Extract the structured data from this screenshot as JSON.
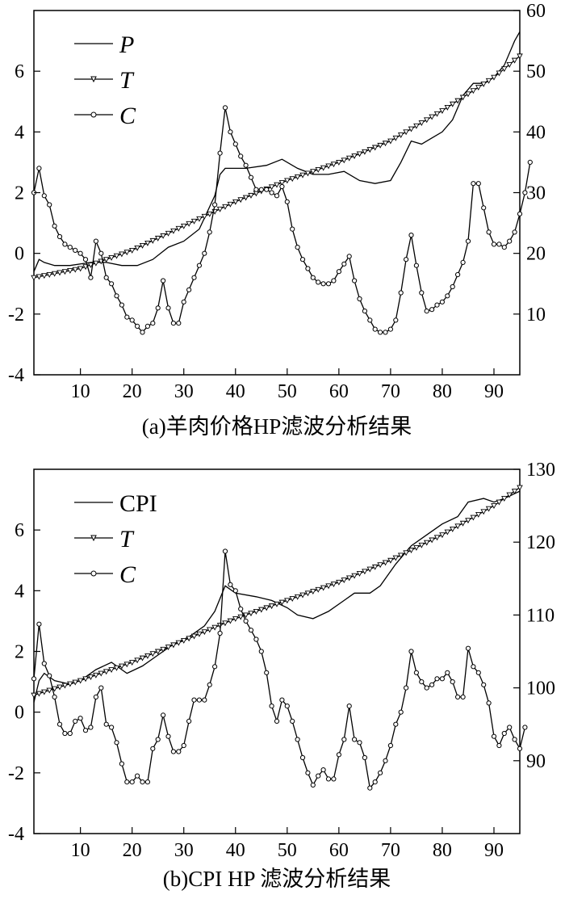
{
  "chart_data": [
    {
      "id": "a",
      "type": "line",
      "caption": "(a)羊肉价格HP滤波分析结果",
      "xlim": [
        1,
        95
      ],
      "x_ticks": [
        "10",
        "20",
        "30",
        "40",
        "50",
        "60",
        "70",
        "80",
        "90"
      ],
      "ylim_left": [
        -4,
        8
      ],
      "y_ticks_left": [
        "-4",
        "-2",
        "0",
        "2",
        "4",
        "6"
      ],
      "ylim_right": [
        0,
        60
      ],
      "y_ticks_right": [
        "10",
        "20",
        "30",
        "40",
        "50",
        "60"
      ],
      "grid": false,
      "legend_position": "top-left",
      "legend": [
        "P",
        "T",
        "C"
      ],
      "series": [
        {
          "name": "P",
          "axis": "right",
          "marker": "none",
          "points": [
            [
              1,
              17
            ],
            [
              2,
              19
            ],
            [
              3,
              18.5
            ],
            [
              5,
              18
            ],
            [
              8,
              18
            ],
            [
              12,
              18.5
            ],
            [
              15,
              18.5
            ],
            [
              18,
              18
            ],
            [
              21,
              18
            ],
            [
              24,
              19
            ],
            [
              27,
              21
            ],
            [
              30,
              22
            ],
            [
              33,
              24
            ],
            [
              36,
              29.5
            ],
            [
              37,
              33
            ],
            [
              38,
              34
            ],
            [
              42,
              34
            ],
            [
              46,
              34.5
            ],
            [
              49,
              35.5
            ],
            [
              52,
              34
            ],
            [
              55,
              33
            ],
            [
              58,
              33
            ],
            [
              61,
              33.5
            ],
            [
              64,
              32
            ],
            [
              67,
              31.5
            ],
            [
              70,
              32
            ],
            [
              72,
              35
            ],
            [
              74,
              38.5
            ],
            [
              76,
              38
            ],
            [
              78,
              39
            ],
            [
              80,
              40
            ],
            [
              82,
              42
            ],
            [
              84,
              46
            ],
            [
              86,
              48
            ],
            [
              88,
              48
            ],
            [
              90,
              49
            ],
            [
              92,
              51
            ],
            [
              94,
              55
            ],
            [
              95,
              56.5
            ]
          ]
        },
        {
          "name": "T",
          "axis": "right",
          "marker": "triangle-down",
          "range": [
            1,
            95
          ],
          "points": [
            [
              1,
              16
            ],
            [
              10,
              17.5
            ],
            [
              20,
              20.5
            ],
            [
              30,
              24.5
            ],
            [
              40,
              28.5
            ],
            [
              50,
              32
            ],
            [
              60,
              35
            ],
            [
              70,
              38.5
            ],
            [
              80,
              43.5
            ],
            [
              90,
              49
            ],
            [
              95,
              52.5
            ]
          ]
        },
        {
          "name": "C",
          "axis": "left",
          "marker": "circle",
          "values": [
            2.0,
            2.8,
            1.9,
            1.6,
            0.9,
            0.55,
            0.3,
            0.2,
            0.1,
            0.0,
            -0.2,
            -0.8,
            0.4,
            0.0,
            -0.8,
            -1.0,
            -1.4,
            -1.7,
            -2.1,
            -2.2,
            -2.4,
            -2.6,
            -2.4,
            -2.3,
            -1.8,
            -0.9,
            -1.8,
            -2.3,
            -2.3,
            -1.6,
            -1.2,
            -0.8,
            -0.4,
            0.0,
            0.7,
            1.6,
            3.3,
            4.8,
            4.0,
            3.6,
            3.2,
            2.9,
            2.5,
            2.1,
            2.1,
            2.1,
            2.0,
            1.9,
            2.2,
            1.7,
            0.8,
            0.2,
            -0.2,
            -0.5,
            -0.8,
            -0.95,
            -1.0,
            -1.0,
            -0.9,
            -0.6,
            -0.35,
            -0.1,
            -0.9,
            -1.5,
            -1.9,
            -2.2,
            -2.5,
            -2.6,
            -2.6,
            -2.5,
            -2.2,
            -1.3,
            -0.2,
            0.6,
            -0.4,
            -1.3,
            -1.9,
            -1.85,
            -1.7,
            -1.6,
            -1.4,
            -1.1,
            -0.7,
            -0.3,
            0.4,
            2.3,
            2.3,
            1.5,
            0.7,
            0.3,
            0.3,
            0.2,
            0.4,
            0.7,
            1.3,
            2.0,
            3.0
          ]
        }
      ]
    },
    {
      "id": "b",
      "type": "line",
      "caption": "(b)CPI HP 滤波分析结果",
      "xlim": [
        1,
        95
      ],
      "x_ticks": [
        "10",
        "20",
        "30",
        "40",
        "50",
        "60",
        "70",
        "80",
        "90"
      ],
      "ylim_left": [
        -4,
        8
      ],
      "y_ticks_left": [
        "-4",
        "-2",
        "0",
        "2",
        "4",
        "6"
      ],
      "ylim_right": [
        80,
        130
      ],
      "y_ticks_right": [
        "90",
        "100",
        "110",
        "120",
        "130"
      ],
      "grid": false,
      "legend_position": "top-left",
      "legend": [
        "CPI",
        "T",
        "C"
      ],
      "series": [
        {
          "name": "CPI",
          "axis": "right",
          "marker": "none",
          "points": [
            [
              1,
              98
            ],
            [
              2,
              101
            ],
            [
              3,
              102
            ],
            [
              5,
              101
            ],
            [
              8,
              100.5
            ],
            [
              10,
              101
            ],
            [
              13,
              102.5
            ],
            [
              16,
              103.5
            ],
            [
              19,
              102
            ],
            [
              22,
              103
            ],
            [
              25,
              104.5
            ],
            [
              28,
              106
            ],
            [
              31,
              107
            ],
            [
              34,
              108.5
            ],
            [
              36,
              110.5
            ],
            [
              38,
              114
            ],
            [
              40,
              113
            ],
            [
              44,
              112.5
            ],
            [
              47,
              112
            ],
            [
              50,
              111
            ],
            [
              52,
              110
            ],
            [
              55,
              109.5
            ],
            [
              58,
              110.5
            ],
            [
              61,
              112
            ],
            [
              63,
              113
            ],
            [
              66,
              113
            ],
            [
              68,
              114
            ],
            [
              71,
              117
            ],
            [
              74,
              119.5
            ],
            [
              77,
              121
            ],
            [
              80,
              122.5
            ],
            [
              83,
              123.5
            ],
            [
              85,
              125.5
            ],
            [
              88,
              126
            ],
            [
              90,
              125.5
            ],
            [
              92,
              126
            ],
            [
              95,
              127
            ]
          ]
        },
        {
          "name": "T",
          "axis": "right",
          "marker": "triangle-down",
          "range": [
            1,
            95
          ],
          "points": [
            [
              1,
              99
            ],
            [
              10,
              101
            ],
            [
              20,
              103.5
            ],
            [
              30,
              106.5
            ],
            [
              40,
              109.5
            ],
            [
              50,
              112
            ],
            [
              60,
              114.5
            ],
            [
              70,
              117.5
            ],
            [
              80,
              121
            ],
            [
              90,
              125
            ],
            [
              95,
              127.5
            ]
          ]
        },
        {
          "name": "C",
          "axis": "left",
          "marker": "circle",
          "values": [
            1.1,
            2.9,
            1.6,
            1.2,
            0.5,
            -0.4,
            -0.7,
            -0.7,
            -0.3,
            -0.2,
            -0.6,
            -0.5,
            0.5,
            0.8,
            -0.4,
            -0.5,
            -1.0,
            -1.7,
            -2.3,
            -2.3,
            -2.1,
            -2.3,
            -2.3,
            -1.2,
            -0.9,
            -0.1,
            -0.8,
            -1.3,
            -1.3,
            -1.1,
            -0.3,
            0.4,
            0.4,
            0.4,
            0.9,
            1.5,
            2.6,
            5.3,
            4.2,
            4.0,
            3.4,
            3.0,
            2.7,
            2.4,
            2.0,
            1.3,
            0.2,
            -0.3,
            0.4,
            0.2,
            -0.3,
            -0.9,
            -1.5,
            -2.0,
            -2.4,
            -2.1,
            -1.9,
            -2.2,
            -2.2,
            -1.4,
            -0.9,
            0.2,
            -0.9,
            -1.0,
            -1.5,
            -2.5,
            -2.3,
            -2.0,
            -1.6,
            -1.1,
            -0.4,
            0.0,
            0.8,
            2.0,
            1.3,
            1.0,
            0.8,
            0.9,
            1.1,
            1.1,
            1.3,
            1.0,
            0.5,
            0.5,
            2.1,
            1.5,
            1.3,
            0.9,
            0.3,
            -0.8,
            -1.1,
            -0.7,
            -0.5,
            -0.9,
            -1.2,
            -0.5
          ]
        }
      ]
    }
  ]
}
